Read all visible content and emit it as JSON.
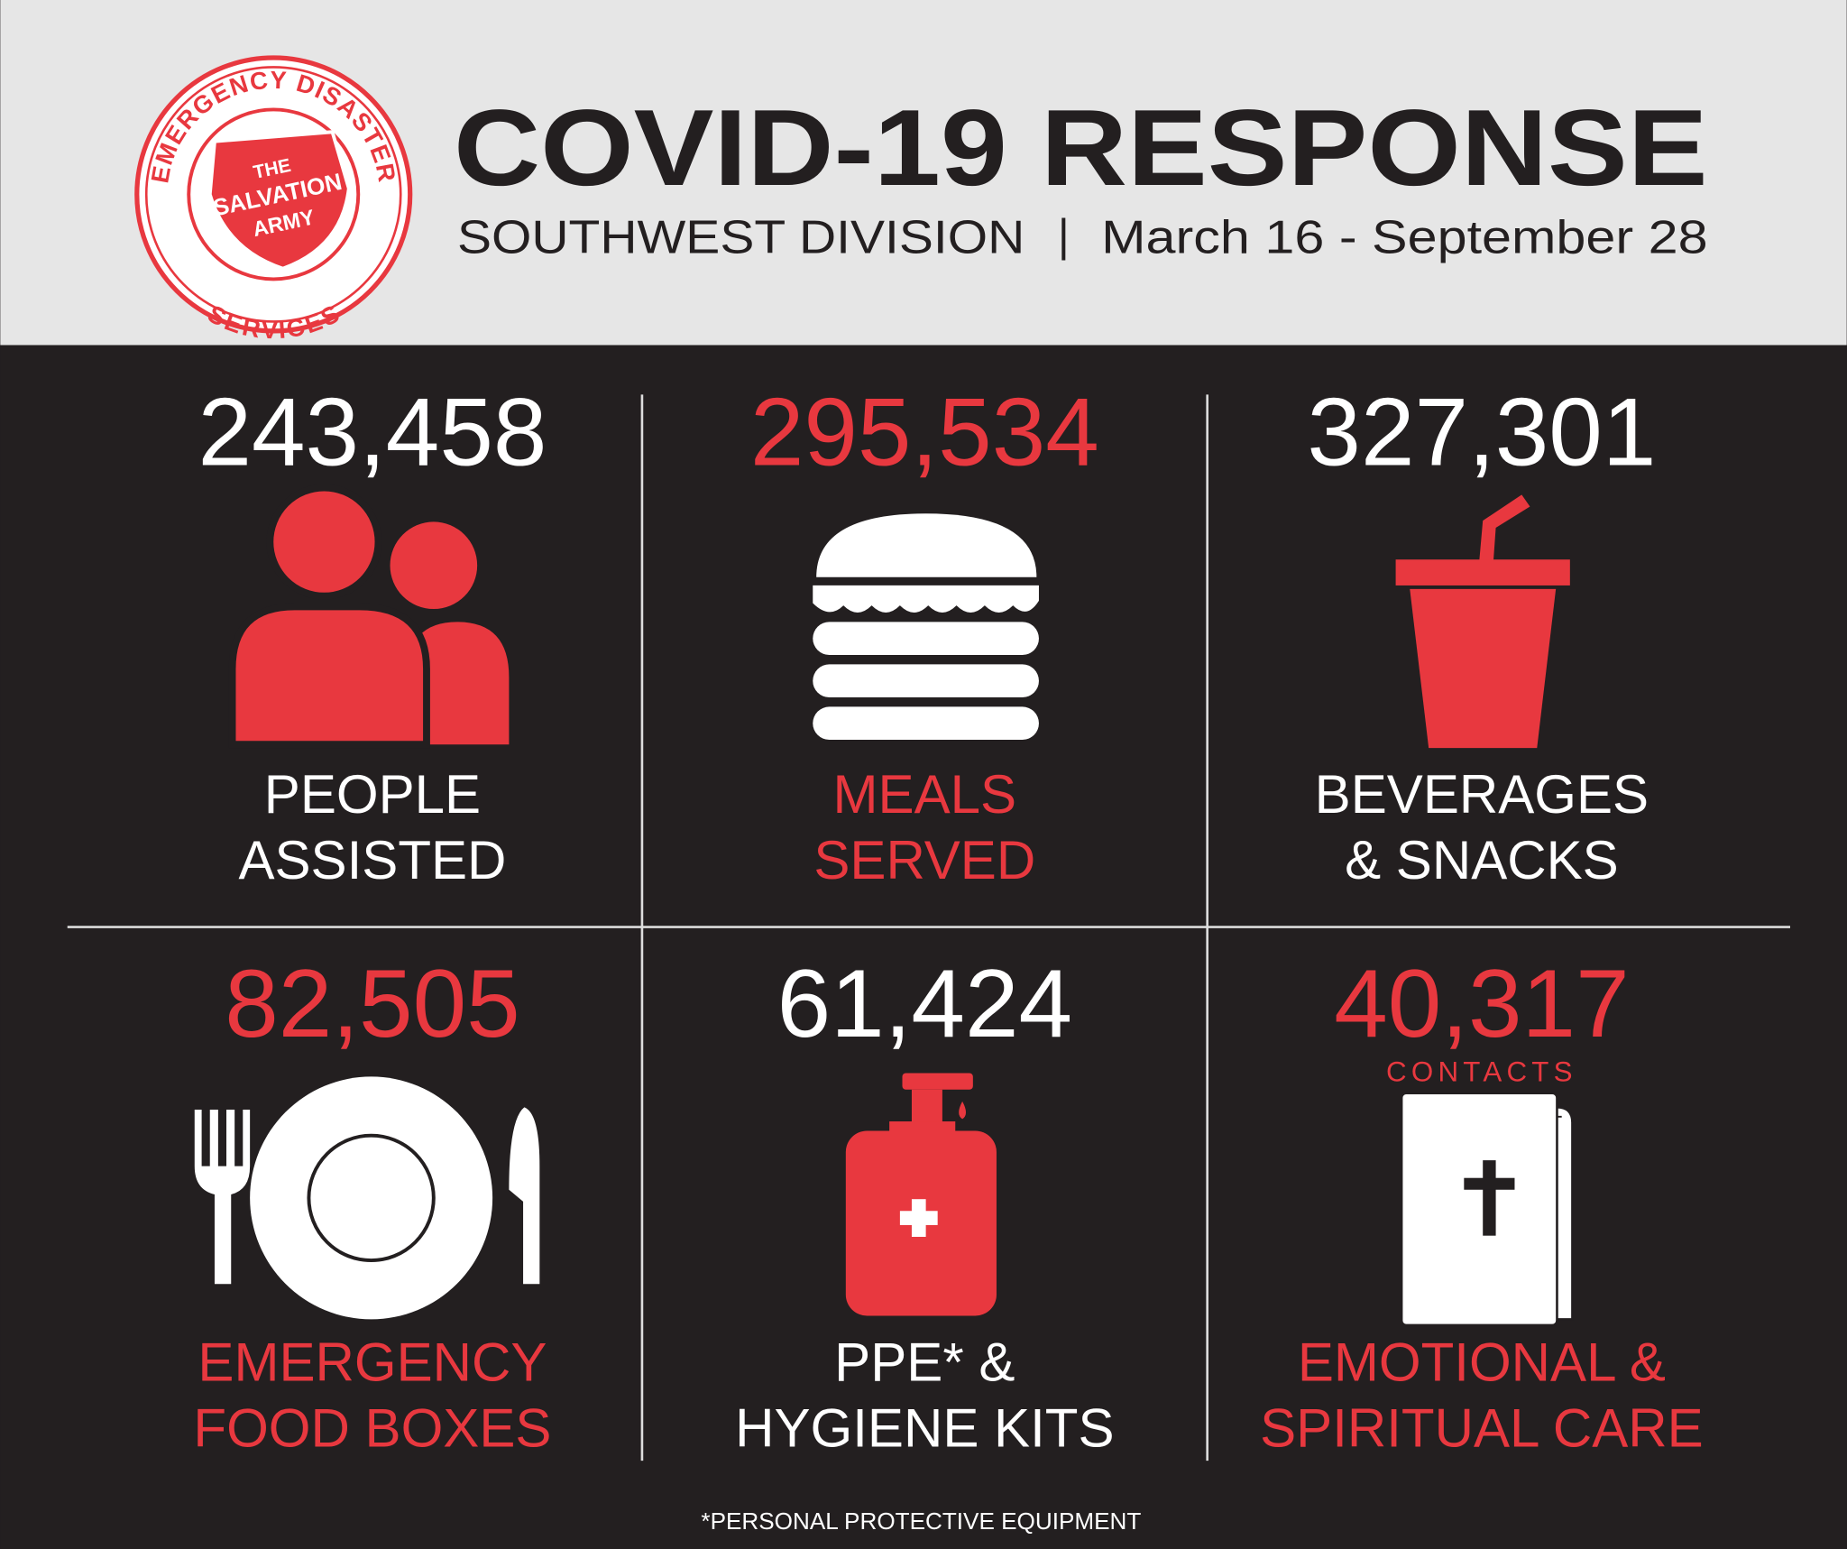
{
  "header": {
    "title": "COVID-19 RESPONSE",
    "division": "SOUTHWEST DIVISION",
    "separator": "|",
    "dates": "March 16 - September 28"
  },
  "logo": {
    "top": "EMERGENCY DISASTER",
    "bottom": "SERVICES",
    "shield": [
      "THE",
      "SALVATION",
      "ARMY"
    ]
  },
  "stats": [
    {
      "value": "243,458",
      "label": [
        "PEOPLE",
        "ASSISTED"
      ],
      "color": "#ffffff"
    },
    {
      "value": "295,534",
      "label": [
        "MEALS",
        "SERVED"
      ],
      "color": "#e8383f"
    },
    {
      "value": "327,301",
      "label": [
        "BEVERAGES",
        "& SNACKS"
      ],
      "color": "#ffffff"
    },
    {
      "value": "82,505",
      "label": [
        "EMERGENCY",
        "FOOD BOXES"
      ],
      "color": "#e8383f"
    },
    {
      "value": "61,424",
      "label": [
        "PPE* &",
        "HYGIENE KITS"
      ],
      "color": "#ffffff"
    },
    {
      "value": "40,317",
      "unit": "CONTACTS",
      "label": [
        "EMOTIONAL &",
        "SPIRITUAL CARE"
      ],
      "color": "#e8383f"
    }
  ],
  "footnote": "*PERSONAL PROTECTIVE EQUIPMENT"
}
